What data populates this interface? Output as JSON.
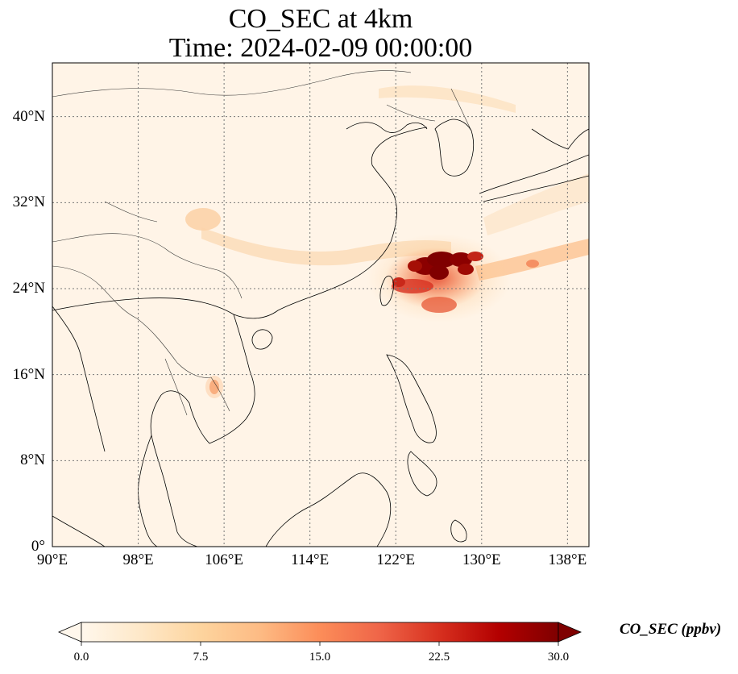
{
  "title": {
    "line1": "CO_SEC at 4km",
    "line2": "Time: 2024-02-09 00:00:00"
  },
  "map": {
    "extent": {
      "lon_min": 90,
      "lon_max": 140,
      "lat_min": 0,
      "lat_max": 45
    },
    "gridlines": {
      "lons": [
        98,
        106,
        114,
        122,
        130,
        138
      ],
      "lats": [
        8,
        16,
        24,
        32,
        40
      ],
      "style": "dotted"
    },
    "lat_ticks": [
      {
        "lat": 0,
        "label": "0°"
      },
      {
        "lat": 8,
        "label": "8°N"
      },
      {
        "lat": 16,
        "label": "16°N"
      },
      {
        "lat": 24,
        "label": "24°N"
      },
      {
        "lat": 32,
        "label": "32°N"
      },
      {
        "lat": 40,
        "label": "40°N"
      }
    ],
    "lon_ticks": [
      {
        "lon": 90,
        "label": "90°E"
      },
      {
        "lon": 98,
        "label": "98°E"
      },
      {
        "lon": 106,
        "label": "106°E"
      },
      {
        "lon": 114,
        "label": "114°E"
      },
      {
        "lon": 122,
        "label": "122°E"
      },
      {
        "lon": 130,
        "label": "130°E"
      },
      {
        "lon": 138,
        "label": "138°E"
      }
    ]
  },
  "colorbar": {
    "label": "CO_SEC (ppbv)",
    "min": 0,
    "max": 30,
    "ticks": [
      {
        "value": 0,
        "label": "0.0"
      },
      {
        "value": 7.5,
        "label": "7.5"
      },
      {
        "value": 15,
        "label": "15.0"
      },
      {
        "value": 22.5,
        "label": "22.5"
      },
      {
        "value": 30,
        "label": "30.0"
      }
    ],
    "colormap": "OrRd",
    "colors": [
      "#fff7ec",
      "#fee8c8",
      "#fdd49e",
      "#fdbb84",
      "#fc8d59",
      "#ef6548",
      "#d7301f",
      "#b30000",
      "#7f0000"
    ],
    "extend": "both"
  }
}
